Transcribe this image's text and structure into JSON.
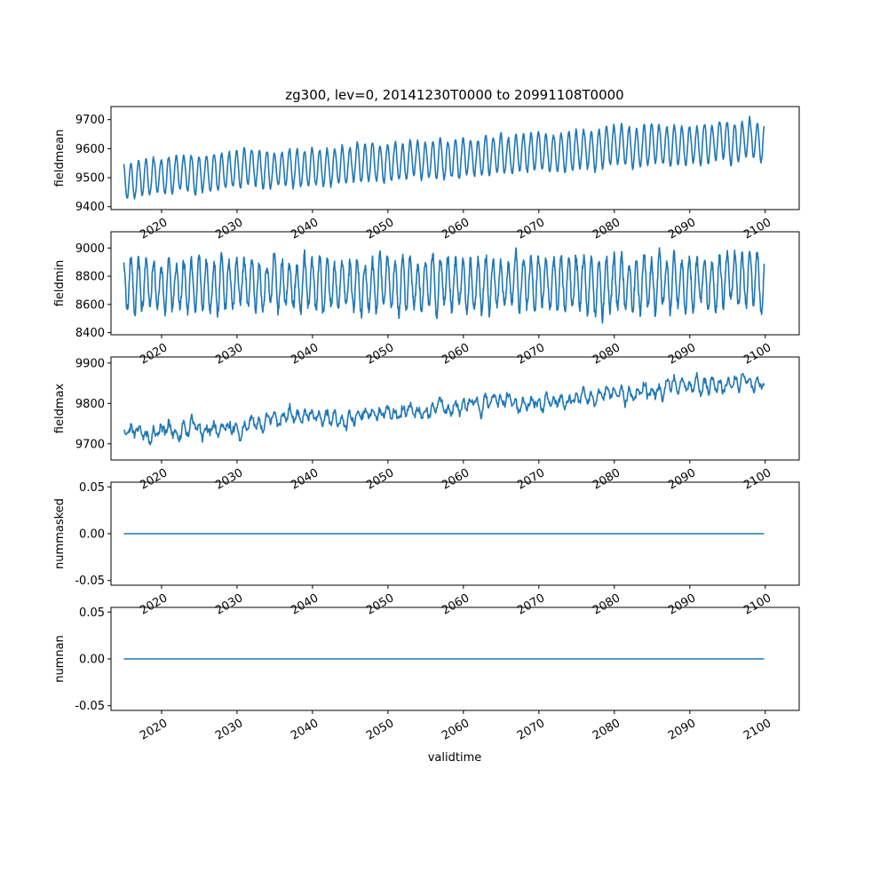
{
  "title": "zg300, lev=0, 20141230T0000 to 20991108T0000",
  "xlabel": "validtime",
  "line_color": "#1f77b4",
  "chart_data": [
    {
      "type": "line",
      "name": "fieldmean",
      "ylabel": "fieldmean",
      "xlim": [
        2013.3,
        2104.5
      ],
      "ylim": [
        9390,
        9745
      ],
      "yticks": [
        9400,
        9500,
        9600,
        9700
      ],
      "ytick_labels": [
        "9400",
        "9500",
        "9600",
        "9700"
      ],
      "xticks": [
        2020,
        2030,
        2040,
        2050,
        2060,
        2070,
        2080,
        2090,
        2100
      ],
      "xtick_labels": [
        "2020",
        "2030",
        "2040",
        "2050",
        "2060",
        "2070",
        "2080",
        "2090",
        "2100"
      ],
      "x_start": 2015.0,
      "x_end": 2099.85,
      "samples_per_year": 12,
      "seasonal_cycle": {
        "base_start": 9495,
        "base_end": 9632,
        "amplitude_start": 62,
        "amplitude_end": 68,
        "noise": 10
      },
      "grid": false
    },
    {
      "type": "line",
      "name": "fieldmin",
      "ylabel": "fieldmin",
      "xlim": [
        2013.3,
        2104.5
      ],
      "ylim": [
        8385,
        9115
      ],
      "yticks": [
        8400,
        8600,
        8800,
        9000
      ],
      "ytick_labels": [
        "8400",
        "8600",
        "8800",
        "9000"
      ],
      "xticks": [
        2020,
        2030,
        2040,
        2050,
        2060,
        2070,
        2080,
        2090,
        2100
      ],
      "xtick_labels": [
        "2020",
        "2030",
        "2040",
        "2050",
        "2060",
        "2070",
        "2080",
        "2090",
        "2100"
      ],
      "x_start": 2015.0,
      "x_end": 2099.85,
      "samples_per_year": 24,
      "seasonal_cycle": {
        "base_start": 8730,
        "base_end": 8760,
        "amplitude_start": 170,
        "amplitude_end": 180,
        "noise": 45
      },
      "grid": false
    },
    {
      "type": "line",
      "name": "fieldmax",
      "ylabel": "fieldmax",
      "xlim": [
        2013.3,
        2104.5
      ],
      "ylim": [
        9660,
        9915
      ],
      "yticks": [
        9700,
        9800,
        9900
      ],
      "ytick_labels": [
        "9700",
        "9800",
        "9900"
      ],
      "xticks": [
        2020,
        2030,
        2040,
        2050,
        2060,
        2070,
        2080,
        2090,
        2100
      ],
      "xtick_labels": [
        "2020",
        "2030",
        "2040",
        "2050",
        "2060",
        "2070",
        "2080",
        "2090",
        "2100"
      ],
      "x_start": 2015.0,
      "x_end": 2099.85,
      "samples_per_year": 12,
      "seasonal_cycle": {
        "base_start": 9725,
        "base_end": 9855,
        "amplitude_start": 10,
        "amplitude_end": 14,
        "noise": 14
      },
      "grid": false
    },
    {
      "type": "line",
      "name": "nummasked",
      "ylabel": "nummasked",
      "xlim": [
        2013.3,
        2104.5
      ],
      "ylim": [
        -0.055,
        0.055
      ],
      "yticks": [
        -0.05,
        0.0,
        0.05
      ],
      "ytick_labels": [
        "-0.05",
        "0.00",
        "0.05"
      ],
      "xticks": [
        2020,
        2030,
        2040,
        2050,
        2060,
        2070,
        2080,
        2090,
        2100
      ],
      "xtick_labels": [
        "2020",
        "2030",
        "2040",
        "2050",
        "2060",
        "2070",
        "2080",
        "2090",
        "2100"
      ],
      "x": [
        2015.0,
        2099.85
      ],
      "y": [
        0,
        0
      ],
      "grid": false
    },
    {
      "type": "line",
      "name": "numnan",
      "ylabel": "numnan",
      "xlim": [
        2013.3,
        2104.5
      ],
      "ylim": [
        -0.055,
        0.055
      ],
      "yticks": [
        -0.05,
        0.0,
        0.05
      ],
      "ytick_labels": [
        "-0.05",
        "0.00",
        "0.05"
      ],
      "xticks": [
        2020,
        2030,
        2040,
        2050,
        2060,
        2070,
        2080,
        2090,
        2100
      ],
      "xtick_labels": [
        "2020",
        "2030",
        "2040",
        "2050",
        "2060",
        "2070",
        "2080",
        "2090",
        "2100"
      ],
      "x": [
        2015.0,
        2099.85
      ],
      "y": [
        0,
        0
      ],
      "grid": false
    }
  ]
}
